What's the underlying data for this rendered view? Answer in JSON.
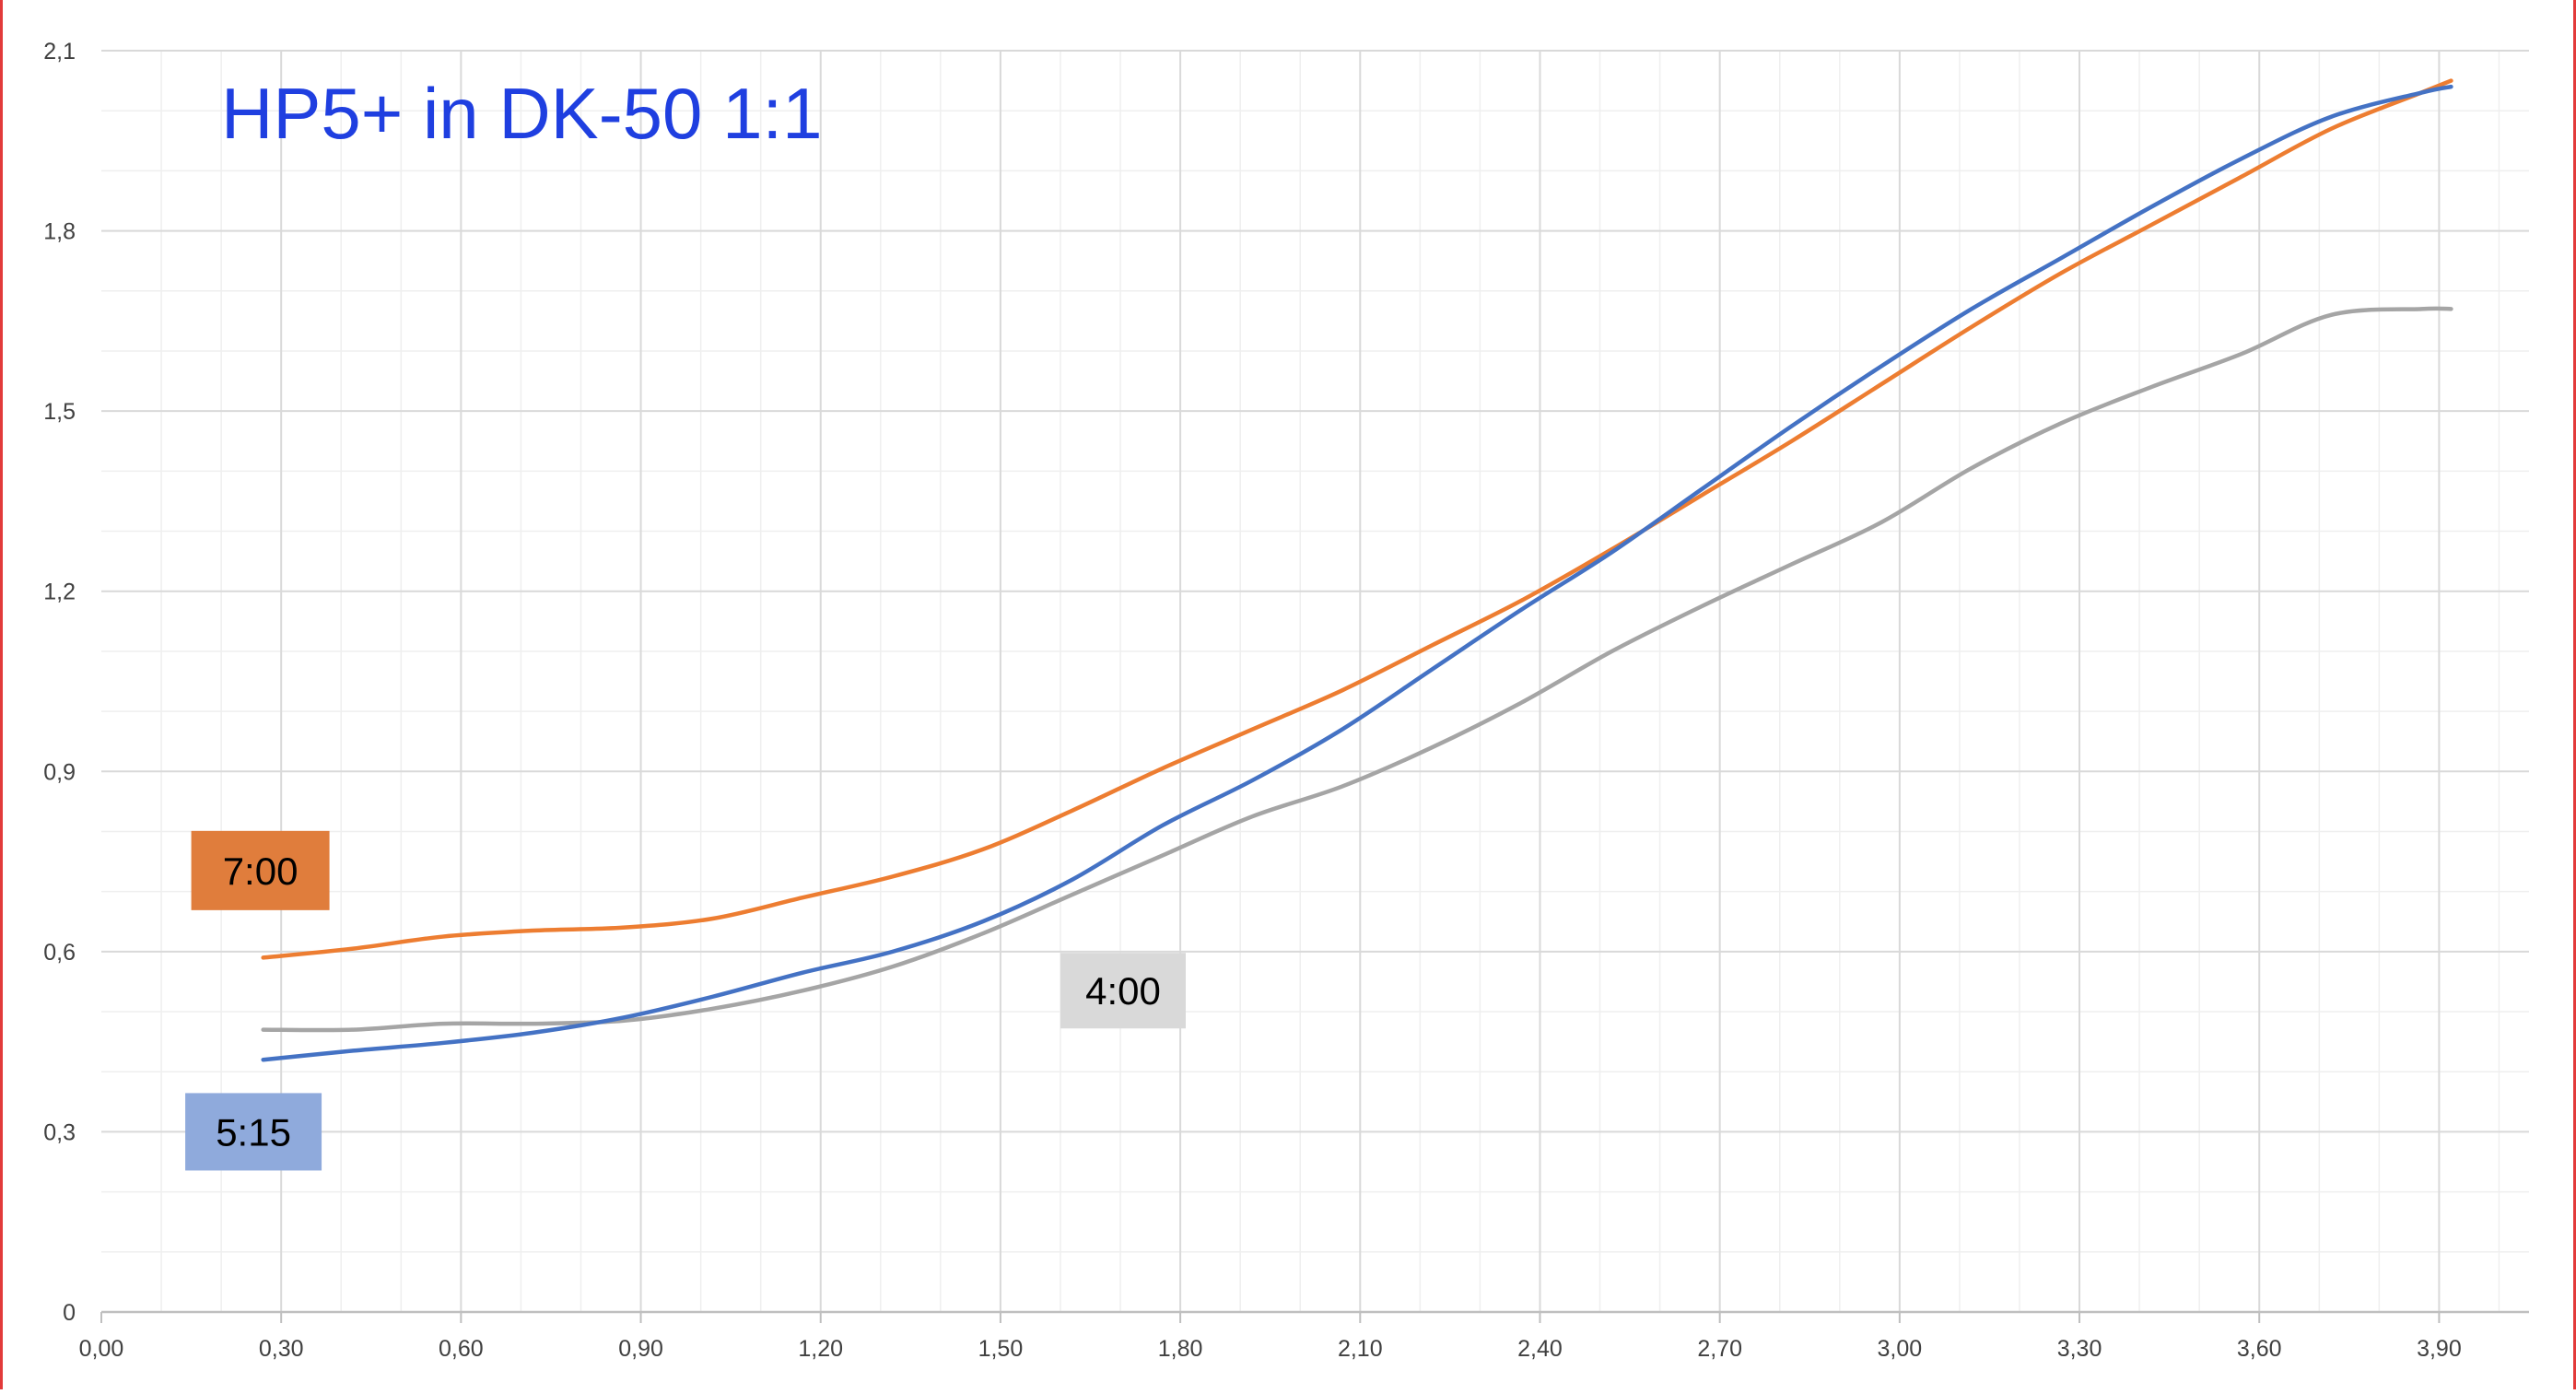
{
  "chart_data": {
    "type": "line",
    "title": "HP5+ in DK-50 1:1",
    "xlabel": "",
    "ylabel": "",
    "xlim": [
      0,
      4.05
    ],
    "ylim": [
      0,
      2.1
    ],
    "x_ticks": [
      0,
      0.3,
      0.6,
      0.9,
      1.2,
      1.5,
      1.8,
      2.1,
      2.4,
      2.7,
      3.0,
      3.3,
      3.6,
      3.9
    ],
    "x_tick_labels": [
      "0,00",
      "0,30",
      "0,60",
      "0,90",
      "1,20",
      "1,50",
      "1,80",
      "2,10",
      "2,40",
      "2,70",
      "3,00",
      "3,30",
      "3,60",
      "3,90"
    ],
    "y_ticks": [
      0,
      0.3,
      0.6,
      0.9,
      1.2,
      1.5,
      1.8,
      2.1
    ],
    "y_tick_labels": [
      "0",
      "0,3",
      "0,6",
      "0,9",
      "1,2",
      "1,5",
      "1,8",
      "2,1"
    ],
    "grid": true,
    "minor_grid": true,
    "series": [
      {
        "name": "5:15",
        "color": "#4472c4",
        "label_bg": "#8faadc",
        "x": [
          0.27,
          0.42,
          0.57,
          0.72,
          0.87,
          1.02,
          1.17,
          1.32,
          1.47,
          1.62,
          1.77,
          1.92,
          2.07,
          2.22,
          2.37,
          2.52,
          2.67,
          2.82,
          2.97,
          3.12,
          3.27,
          3.42,
          3.57,
          3.72,
          3.87,
          3.92
        ],
        "values": [
          0.42,
          0.435,
          0.448,
          0.465,
          0.49,
          0.525,
          0.565,
          0.6,
          0.65,
          0.72,
          0.81,
          0.885,
          0.97,
          1.07,
          1.17,
          1.265,
          1.37,
          1.475,
          1.575,
          1.67,
          1.755,
          1.84,
          1.92,
          1.99,
          2.03,
          2.04
        ]
      },
      {
        "name": "7:00",
        "color": "#ed7d31",
        "label_bg": "#e07d3c",
        "x": [
          0.27,
          0.42,
          0.57,
          0.72,
          0.87,
          1.02,
          1.17,
          1.32,
          1.47,
          1.62,
          1.77,
          1.92,
          2.07,
          2.22,
          2.37,
          2.52,
          2.67,
          2.82,
          2.97,
          3.12,
          3.27,
          3.42,
          3.57,
          3.72,
          3.87,
          3.92
        ],
        "values": [
          0.59,
          0.605,
          0.625,
          0.635,
          0.64,
          0.655,
          0.69,
          0.725,
          0.77,
          0.835,
          0.905,
          0.97,
          1.035,
          1.11,
          1.185,
          1.27,
          1.36,
          1.45,
          1.545,
          1.64,
          1.73,
          1.81,
          1.89,
          1.97,
          2.03,
          2.05
        ]
      },
      {
        "name": "4:00",
        "color": "#a5a5a5",
        "label_bg": "#d9d9d9",
        "x": [
          0.27,
          0.42,
          0.57,
          0.72,
          0.87,
          1.02,
          1.17,
          1.32,
          1.47,
          1.62,
          1.77,
          1.92,
          2.07,
          2.22,
          2.37,
          2.52,
          2.67,
          2.82,
          2.97,
          3.12,
          3.27,
          3.42,
          3.57,
          3.72,
          3.87,
          3.92
        ],
        "values": [
          0.47,
          0.47,
          0.48,
          0.48,
          0.485,
          0.505,
          0.535,
          0.575,
          0.63,
          0.695,
          0.76,
          0.825,
          0.875,
          0.94,
          1.015,
          1.1,
          1.175,
          1.245,
          1.315,
          1.405,
          1.48,
          1.54,
          1.595,
          1.66,
          1.67,
          1.67
        ]
      }
    ],
    "annotations": [
      {
        "text": "7:00",
        "series": "7:00"
      },
      {
        "text": "4:00",
        "series": "4:00"
      },
      {
        "text": "5:15",
        "series": "5:15"
      }
    ]
  },
  "colors": {
    "title": "#1f3fe0",
    "grid_major": "#d9d9d9",
    "grid_minor": "#efefef",
    "axis": "#bfbfbf",
    "tick_text": "#404040",
    "edge": "#e23a3a"
  }
}
